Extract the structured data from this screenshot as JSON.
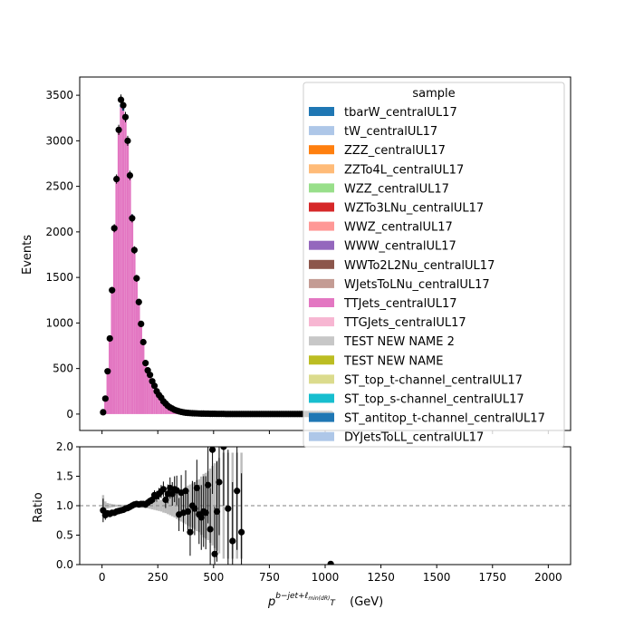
{
  "chart_data": [
    {
      "type": "bar",
      "panel": "main",
      "subtype": "stacked-histogram-with-data-points",
      "xlabel": "",
      "ylabel": "Events",
      "xlim": [
        -100,
        2100
      ],
      "ylim": [
        -180,
        3700
      ],
      "yticks": [
        0,
        500,
        1000,
        1500,
        2000,
        2500,
        3000,
        3500
      ],
      "bin_width": 10,
      "legend": {
        "title": "sample",
        "placement": "top-right",
        "entries": [
          {
            "name": "tbarW_centralUL17",
            "color": "#1f77b4"
          },
          {
            "name": "tW_centralUL17",
            "color": "#aec7e8"
          },
          {
            "name": "ZZZ_centralUL17",
            "color": "#ff7f0e"
          },
          {
            "name": "ZZTo4L_centralUL17",
            "color": "#ffbb78"
          },
          {
            "name": "WZZ_centralUL17",
            "color": "#98df8a"
          },
          {
            "name": "WZTo3LNu_centralUL17",
            "color": "#d62728"
          },
          {
            "name": "WWZ_centralUL17",
            "color": "#ff9896"
          },
          {
            "name": "WWW_centralUL17",
            "color": "#9467bd"
          },
          {
            "name": "WWTo2L2Nu_centralUL17",
            "color": "#8c564b"
          },
          {
            "name": "WJetsToLNu_centralUL17",
            "color": "#c49c94"
          },
          {
            "name": "TTJets_centralUL17",
            "color": "#e377c2"
          },
          {
            "name": "TTGJets_centralUL17",
            "color": "#f7b6d2"
          },
          {
            "name": "TEST NEW NAME 2",
            "color": "#c7c7c7"
          },
          {
            "name": "TEST NEW NAME",
            "color": "#bcbd22"
          },
          {
            "name": "ST_top_t-channel_centralUL17",
            "color": "#dbdb8d"
          },
          {
            "name": "ST_top_s-channel_centralUL17",
            "color": "#17becf"
          },
          {
            "name": "ST_antitop_t-channel_centralUL17",
            "color": "#1f77b4"
          },
          {
            "name": "DYJetsToLL_centralUL17",
            "color": "#aec7e8"
          }
        ]
      },
      "mc_stack_total": {
        "x": [
          5,
          15,
          25,
          35,
          45,
          55,
          65,
          75,
          85,
          95,
          105,
          115,
          125,
          135,
          145,
          155,
          165,
          175,
          185,
          195,
          205,
          215,
          225,
          235,
          245,
          255,
          265,
          275,
          285,
          295,
          305,
          315,
          325,
          335,
          345,
          355,
          365,
          375,
          385,
          395,
          405,
          415,
          425,
          435,
          445,
          455,
          465,
          475,
          485,
          495,
          505,
          515,
          525,
          535,
          545,
          555,
          565,
          575,
          585,
          595,
          605,
          615,
          625
        ],
        "values": [
          20,
          160,
          460,
          830,
          1360,
          2040,
          2580,
          3100,
          3370,
          3330,
          3250,
          2980,
          2600,
          2160,
          1780,
          1480,
          1230,
          980,
          780,
          560,
          470,
          410,
          330,
          265,
          215,
          175,
          140,
          110,
          90,
          70,
          58,
          45,
          36,
          29,
          23,
          19,
          16,
          13,
          11,
          9,
          8,
          7,
          6,
          5,
          4,
          4,
          3,
          3,
          3,
          2,
          2,
          2,
          2,
          1,
          1,
          1,
          1,
          1,
          1,
          1,
          1,
          1,
          1
        ],
        "dominant_component": "TTJets_centralUL17"
      },
      "data_points": {
        "x": [
          5,
          15,
          25,
          35,
          45,
          55,
          65,
          75,
          85,
          95,
          105,
          115,
          125,
          135,
          145,
          155,
          165,
          175,
          185,
          195,
          205,
          215,
          225,
          235,
          245,
          255,
          265,
          275,
          285,
          295,
          305,
          315,
          325,
          335,
          345,
          355,
          365,
          375,
          385,
          395,
          405,
          415,
          425,
          435,
          445,
          455,
          465,
          475,
          485,
          495,
          505,
          515,
          525,
          535,
          545,
          555,
          565,
          575,
          585,
          595,
          605,
          615,
          625,
          635,
          645,
          655,
          665,
          675,
          685,
          695,
          705,
          715,
          725,
          735,
          745,
          755,
          765,
          775,
          785,
          795,
          805,
          815,
          825,
          835,
          845,
          855,
          865,
          875,
          885,
          895,
          905,
          915,
          925,
          935,
          945,
          955,
          965,
          975,
          985,
          995,
          1005,
          1015,
          1025
        ],
        "values": [
          20,
          170,
          470,
          830,
          1360,
          2040,
          2580,
          3120,
          3450,
          3390,
          3260,
          3000,
          2620,
          2150,
          1800,
          1490,
          1230,
          990,
          790,
          560,
          480,
          430,
          360,
          310,
          250,
          210,
          180,
          140,
          115,
          90,
          73,
          60,
          47,
          38,
          30,
          24,
          19,
          15,
          13,
          11,
          9,
          8,
          7,
          6,
          5,
          5,
          4,
          4,
          3,
          3,
          3,
          2,
          2,
          2,
          2,
          1,
          1,
          1,
          1,
          1,
          1,
          1,
          1,
          1,
          1,
          1,
          1,
          1,
          1,
          1,
          1,
          1,
          1,
          1,
          1,
          1,
          1,
          1,
          1,
          1,
          1,
          1,
          1,
          1,
          1,
          1,
          1,
          1,
          1,
          1,
          1,
          1,
          1,
          1,
          1,
          1,
          1,
          1,
          1,
          1,
          1,
          1,
          1
        ],
        "color": "#000000"
      }
    },
    {
      "type": "scatter",
      "panel": "ratio",
      "xlabel": "p_T^{b-jet + ℓ_min(dR)} (GeV)",
      "ylabel": "Ratio",
      "xlim": [
        -100,
        2100
      ],
      "ylim": [
        0,
        2.0
      ],
      "xticks": [
        0,
        250,
        500,
        750,
        1000,
        1250,
        1500,
        1750,
        2000
      ],
      "yticks": [
        0.0,
        0.5,
        1.0,
        1.5,
        2.0
      ],
      "reference_line": 1.0,
      "ratio_points": {
        "x": [
          5,
          15,
          25,
          35,
          45,
          55,
          65,
          75,
          85,
          95,
          105,
          115,
          125,
          135,
          145,
          155,
          165,
          175,
          185,
          195,
          205,
          215,
          225,
          235,
          245,
          255,
          265,
          275,
          285,
          295,
          305,
          315,
          325,
          335,
          345,
          355,
          365,
          375,
          385,
          395,
          405,
          415,
          425,
          435,
          445,
          455,
          465,
          475,
          485,
          495,
          505,
          515,
          525,
          545,
          565,
          585,
          605,
          625,
          1025
        ],
        "values": [
          0.92,
          0.84,
          0.87,
          0.86,
          0.88,
          0.88,
          0.9,
          0.91,
          0.92,
          0.93,
          0.95,
          0.96,
          0.98,
          1.0,
          1.02,
          1.03,
          1.02,
          1.03,
          1.03,
          1.02,
          1.05,
          1.08,
          1.1,
          1.18,
          1.16,
          1.2,
          1.24,
          1.28,
          1.1,
          1.2,
          1.3,
          1.2,
          1.28,
          1.26,
          0.85,
          1.22,
          0.88,
          1.25,
          0.9,
          0.55,
          1.0,
          0.95,
          1.3,
          0.85,
          0.8,
          0.9,
          0.88,
          1.35,
          0.6,
          1.95,
          0.18,
          0.9,
          1.4,
          2.0,
          0.95,
          0.4,
          1.25,
          0.55,
          0.01
        ],
        "errors": [
          0.2,
          0.08,
          0.05,
          0.04,
          0.03,
          0.025,
          0.02,
          0.02,
          0.02,
          0.02,
          0.02,
          0.02,
          0.02,
          0.025,
          0.03,
          0.03,
          0.035,
          0.04,
          0.04,
          0.05,
          0.05,
          0.06,
          0.07,
          0.08,
          0.09,
          0.1,
          0.11,
          0.13,
          0.14,
          0.16,
          0.18,
          0.2,
          0.22,
          0.25,
          0.28,
          0.3,
          0.32,
          0.35,
          0.38,
          0.4,
          0.42,
          0.45,
          0.48,
          0.5,
          0.55,
          0.6,
          0.62,
          0.65,
          0.7,
          0.75,
          0.8,
          0.85,
          0.9,
          1.0,
          1.0,
          1.0,
          1.0,
          1.0,
          0.0
        ],
        "color": "#000000"
      },
      "mc_uncertainty_band_color": "#b0b0b0"
    }
  ]
}
